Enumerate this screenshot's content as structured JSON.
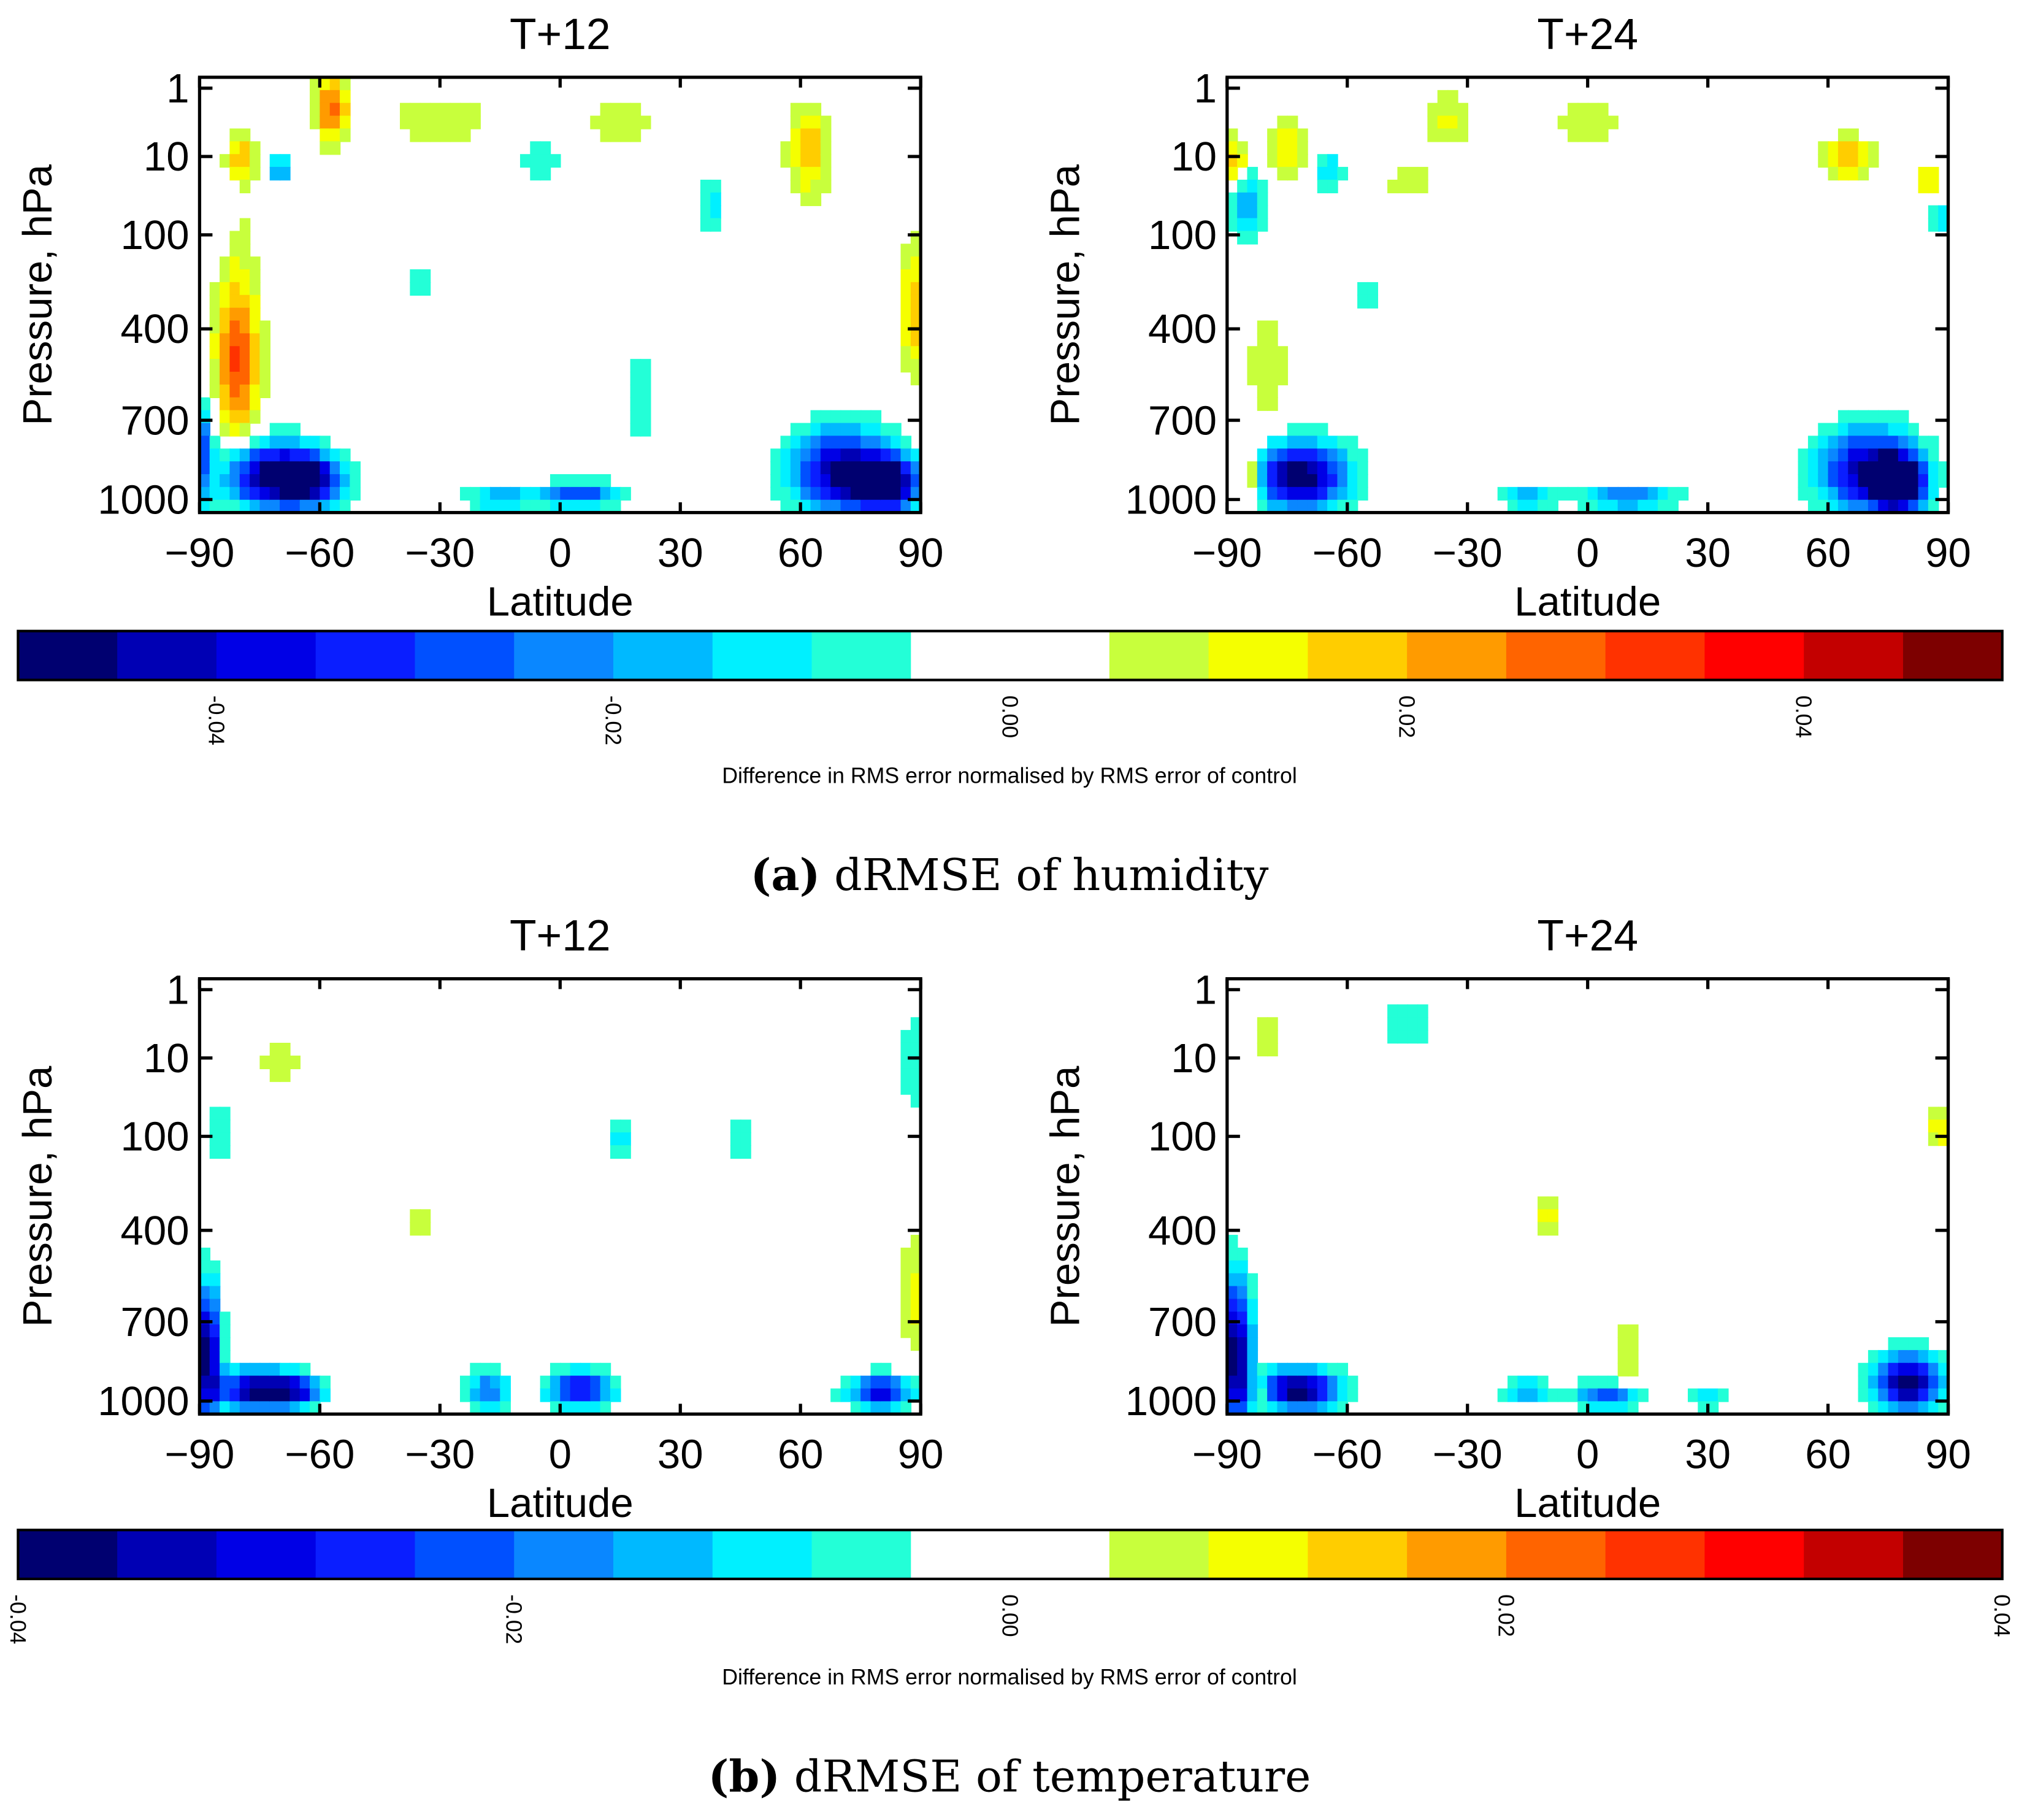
{
  "captions": [
    {
      "label": "(a)",
      "text": " dRMSE of humidity"
    },
    {
      "label": "(b)",
      "text": " dRMSE of temperature"
    }
  ],
  "chart_data": [
    {
      "type": "heatmap",
      "title": "T+12",
      "group": "a",
      "xlabel": "Latitude",
      "ylabel": "Pressure, hPa",
      "xlim": [
        -90,
        90
      ],
      "xticks": [
        -90,
        -60,
        -30,
        0,
        30,
        60,
        90
      ],
      "yticks": [
        1,
        10,
        100,
        400,
        700,
        1000
      ],
      "blobs": [
        [
          -80,
          500,
          0.022,
          5,
          250
        ],
        [
          -82,
          250,
          0.012,
          6,
          300
        ],
        [
          -72,
          900,
          -0.05,
          12,
          150
        ],
        [
          -62,
          920,
          -0.035,
          8,
          120
        ],
        [
          -57,
          2,
          0.03,
          4,
          5
        ],
        [
          -80,
          10,
          0.018,
          4,
          6
        ],
        [
          -70,
          15,
          -0.02,
          3,
          6
        ],
        [
          -85,
          40,
          -0.01,
          5,
          60
        ],
        [
          70,
          880,
          -0.045,
          12,
          200
        ],
        [
          82,
          930,
          -0.05,
          8,
          150
        ],
        [
          62,
          8,
          0.02,
          5,
          8
        ],
        [
          5,
          980,
          -0.03,
          10,
          60
        ],
        [
          -15,
          990,
          -0.02,
          8,
          40
        ],
        [
          -30,
          3,
          0.01,
          12,
          3
        ],
        [
          15,
          3,
          0.008,
          10,
          4
        ],
        [
          -5,
          10,
          -0.01,
          5,
          6
        ],
        [
          38,
          40,
          -0.012,
          3,
          30
        ],
        [
          -35,
          200,
          -0.008,
          3,
          80
        ],
        [
          20,
          600,
          -0.008,
          4,
          200
        ],
        [
          88,
          300,
          0.02,
          3,
          200
        ],
        [
          -90,
          800,
          -0.03,
          3,
          200
        ]
      ]
    },
    {
      "type": "heatmap",
      "title": "T+24",
      "group": "a",
      "xlabel": "Latitude",
      "ylabel": "Pressure, hPa",
      "xlim": [
        -90,
        90
      ],
      "xticks": [
        -90,
        -60,
        -30,
        0,
        30,
        60,
        90
      ],
      "yticks": [
        1,
        10,
        100,
        400,
        700,
        1000
      ],
      "blobs": [
        [
          -72,
          900,
          -0.05,
          12,
          160
        ],
        [
          -84,
          900,
          0.025,
          3,
          150
        ],
        [
          -80,
          500,
          0.01,
          5,
          200
        ],
        [
          -88,
          12,
          0.02,
          3,
          8
        ],
        [
          -85,
          40,
          -0.02,
          4,
          30
        ],
        [
          -75,
          8,
          0.015,
          5,
          6
        ],
        [
          -65,
          15,
          -0.015,
          4,
          8
        ],
        [
          -35,
          3,
          0.012,
          5,
          3
        ],
        [
          70,
          880,
          -0.045,
          12,
          200
        ],
        [
          78,
          930,
          -0.05,
          6,
          150
        ],
        [
          65,
          10,
          0.02,
          6,
          6
        ],
        [
          85,
          20,
          0.015,
          3,
          10
        ],
        [
          88,
          60,
          -0.015,
          3,
          30
        ],
        [
          10,
          990,
          -0.025,
          12,
          40
        ],
        [
          -15,
          990,
          -0.02,
          6,
          40
        ],
        [
          -45,
          20,
          0.01,
          5,
          10
        ],
        [
          0,
          3,
          0.008,
          10,
          3
        ],
        [
          -55,
          250,
          -0.01,
          3,
          80
        ]
      ]
    },
    {
      "type": "heatmap",
      "title": "T+12",
      "group": "b",
      "xlabel": "Latitude",
      "ylabel": "Pressure, hPa",
      "xlim": [
        -90,
        90
      ],
      "xticks": [
        -90,
        -60,
        -30,
        0,
        30,
        60,
        90
      ],
      "yticks": [
        1,
        10,
        100,
        400,
        700,
        1000
      ],
      "blobs": [
        [
          -88,
          800,
          -0.04,
          3,
          300
        ],
        [
          -75,
          950,
          -0.04,
          10,
          120
        ],
        [
          -65,
          960,
          -0.02,
          6,
          80
        ],
        [
          5,
          950,
          -0.03,
          8,
          100
        ],
        [
          -18,
          950,
          -0.02,
          5,
          120
        ],
        [
          80,
          960,
          -0.03,
          8,
          100
        ],
        [
          88,
          600,
          0.01,
          3,
          200
        ],
        [
          88,
          10,
          -0.008,
          3,
          20
        ],
        [
          -70,
          10,
          0.008,
          5,
          6
        ],
        [
          15,
          100,
          -0.01,
          3,
          40
        ],
        [
          45,
          100,
          -0.008,
          4,
          40
        ],
        [
          -35,
          350,
          0.006,
          3,
          80
        ],
        [
          -85,
          100,
          -0.008,
          4,
          60
        ]
      ]
    },
    {
      "type": "heatmap",
      "title": "T+24",
      "group": "b",
      "xlabel": "Latitude",
      "ylabel": "Pressure, hPa",
      "xlim": [
        -90,
        90
      ],
      "xticks": [
        -90,
        -60,
        -30,
        0,
        30,
        60,
        90
      ],
      "yticks": [
        1,
        10,
        100,
        400,
        700,
        1000
      ],
      "blobs": [
        [
          -88,
          800,
          -0.04,
          4,
          350
        ],
        [
          -72,
          950,
          -0.04,
          10,
          120
        ],
        [
          -82,
          960,
          0.015,
          2,
          80
        ],
        [
          80,
          920,
          -0.04,
          8,
          150
        ],
        [
          5,
          980,
          -0.025,
          8,
          60
        ],
        [
          -15,
          960,
          -0.015,
          6,
          60
        ],
        [
          30,
          980,
          -0.01,
          6,
          40
        ],
        [
          88,
          80,
          0.012,
          3,
          40
        ],
        [
          -10,
          300,
          0.01,
          3,
          100
        ],
        [
          -45,
          3,
          -0.008,
          6,
          3
        ],
        [
          10,
          800,
          0.006,
          3,
          200
        ],
        [
          -80,
          5,
          0.006,
          4,
          4
        ]
      ]
    }
  ],
  "colorbars": [
    {
      "min": -0.05,
      "max": 0.05,
      "nbins": 20,
      "ticks": [
        "-0.04",
        "-0.02",
        "0.00",
        "0.02",
        "0.04"
      ],
      "tickvals": [
        -0.04,
        -0.02,
        0,
        0.02,
        0.04
      ],
      "label": "Difference in RMS error normalised by RMS error of control"
    },
    {
      "min": -0.04,
      "max": 0.04,
      "nbins": 20,
      "ticks": [
        "-0.04",
        "-0.02",
        "0.00",
        "0.02",
        "0.04"
      ],
      "tickvals": [
        -0.04,
        -0.02,
        0,
        0.02,
        0.04
      ],
      "label": "Difference in RMS error normalised by RMS error of control"
    }
  ],
  "colors": [
    "#000070",
    "#0000b4",
    "#0000e6",
    "#0a1eff",
    "#0050ff",
    "#0a87ff",
    "#00b9ff",
    "#00f0ff",
    "#23ffd7",
    "#ffffff",
    "#ffffff",
    "#c8ff3c",
    "#f5ff00",
    "#ffcd00",
    "#ff9b00",
    "#ff6400",
    "#ff3200",
    "#ff0000",
    "#c30000",
    "#7d0000"
  ]
}
